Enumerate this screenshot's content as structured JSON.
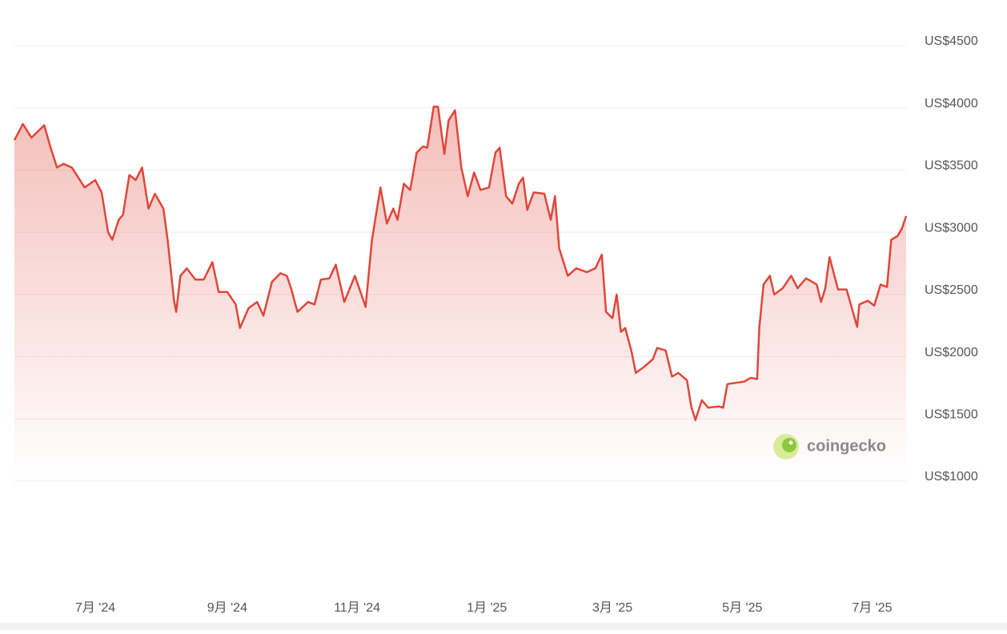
{
  "chart_data": {
    "type": "line",
    "color": "#e0463a",
    "grid": true,
    "watermark": "coingecko",
    "x": [
      -38,
      -34,
      -30,
      -24,
      -21,
      -18,
      -15,
      -11,
      -8,
      -5,
      0,
      3,
      6,
      8,
      11,
      13,
      16,
      19,
      22,
      25,
      28,
      32,
      34,
      37,
      38,
      40,
      43,
      47,
      51,
      55,
      58,
      62,
      66,
      68,
      72,
      76,
      79,
      83,
      87,
      90,
      92,
      95,
      100,
      103,
      106,
      110,
      113,
      117,
      122,
      127,
      130,
      134,
      137,
      140,
      142,
      145,
      148,
      151,
      154,
      156,
      159,
      161,
      164,
      166,
      169,
      172,
      175,
      178,
      181,
      185,
      188,
      190,
      193,
      196,
      199,
      201,
      203,
      206,
      211,
      214,
      216,
      218,
      222,
      226,
      231,
      235,
      238,
      240,
      243,
      245,
      247,
      249,
      252,
      254,
      258,
      262,
      264,
      268,
      271,
      274,
      278,
      280,
      282,
      285,
      288,
      293,
      295,
      297,
      301,
      305,
      308,
      311,
      312,
      314,
      317,
      319,
      323,
      327,
      330,
      334,
      339,
      341,
      343,
      345,
      349,
      353,
      356,
      358,
      359,
      363,
      366,
      369,
      372,
      374,
      377,
      379,
      381
    ],
    "values": [
      3740,
      3870,
      3760,
      3860,
      3680,
      3520,
      3550,
      3520,
      3440,
      3360,
      3420,
      3320,
      3000,
      2940,
      3100,
      3140,
      3460,
      3420,
      3520,
      3190,
      3310,
      3190,
      2940,
      2450,
      2360,
      2650,
      2710,
      2620,
      2620,
      2760,
      2520,
      2520,
      2420,
      2230,
      2390,
      2440,
      2330,
      2600,
      2670,
      2650,
      2550,
      2360,
      2440,
      2420,
      2620,
      2630,
      2740,
      2440,
      2650,
      2400,
      2940,
      3360,
      3070,
      3190,
      3100,
      3390,
      3340,
      3640,
      3690,
      3680,
      4010,
      4010,
      3630,
      3900,
      3980,
      3520,
      3290,
      3480,
      3340,
      3360,
      3640,
      3680,
      3290,
      3230,
      3390,
      3440,
      3180,
      3320,
      3310,
      3100,
      3290,
      2870,
      2650,
      2710,
      2680,
      2710,
      2820,
      2360,
      2310,
      2500,
      2200,
      2230,
      2040,
      1870,
      1920,
      1980,
      2070,
      2050,
      1840,
      1870,
      1810,
      1600,
      1490,
      1650,
      1590,
      1600,
      1590,
      1780,
      1790,
      1800,
      1830,
      1820,
      2230,
      2580,
      2650,
      2500,
      2550,
      2650,
      2550,
      2630,
      2580,
      2440,
      2550,
      2800,
      2540,
      2540,
      2360,
      2240,
      2420,
      2450,
      2410,
      2580,
      2560,
      2940,
      2970,
      3030,
      3130
    ],
    "xlim": [
      -38,
      381
    ],
    "xticks": [
      {
        "value": 0,
        "label": "7月 '24"
      },
      {
        "value": 62,
        "label": "9月 '24"
      },
      {
        "value": 123,
        "label": "11月 '24"
      },
      {
        "value": 184,
        "label": "1月 '25"
      },
      {
        "value": 243,
        "label": "3月 '25"
      },
      {
        "value": 304,
        "label": "5月 '25"
      },
      {
        "value": 365,
        "label": "7月 '25"
      }
    ],
    "ylim": [
      1000,
      4500
    ],
    "yticks": [
      {
        "value": 1000,
        "label": "US$1000"
      },
      {
        "value": 1500,
        "label": "US$1500"
      },
      {
        "value": 2000,
        "label": "US$2000"
      },
      {
        "value": 2500,
        "label": "US$2500"
      },
      {
        "value": 3000,
        "label": "US$3000"
      },
      {
        "value": 3500,
        "label": "US$3500"
      },
      {
        "value": 4000,
        "label": "US$4000"
      },
      {
        "value": 4500,
        "label": "US$4500"
      }
    ]
  }
}
